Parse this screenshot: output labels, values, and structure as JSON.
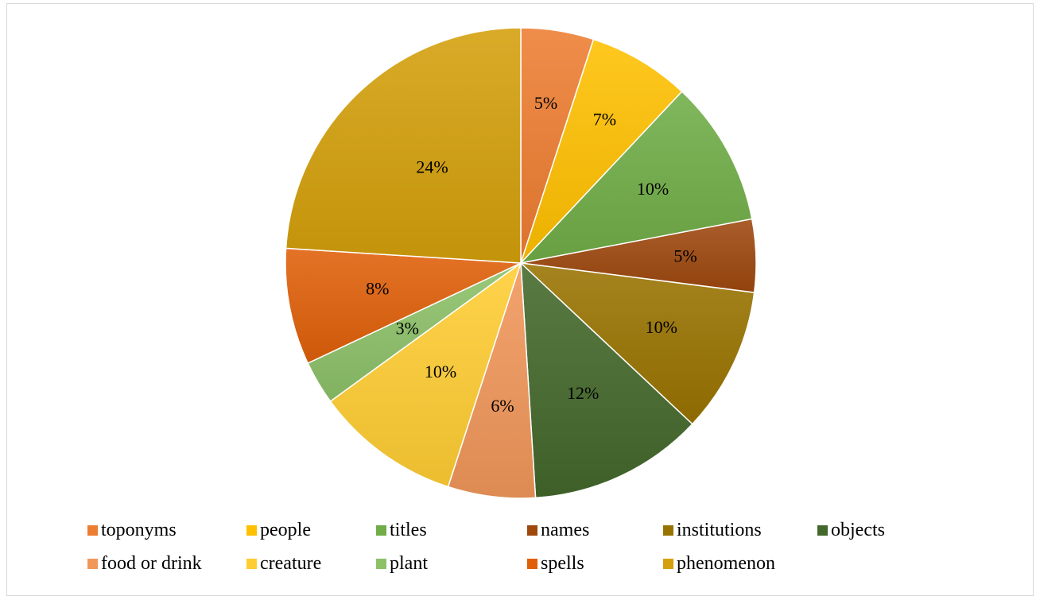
{
  "chart_data": {
    "type": "pie",
    "title": "",
    "legend_position": "bottom",
    "start_angle": "12 o'clock, clockwise",
    "slices": [
      {
        "name": "toponyms",
        "value": 5,
        "label": "5%",
        "color": "#ED7D31"
      },
      {
        "name": "people",
        "value": 7,
        "label": "7%",
        "color": "#FFC000"
      },
      {
        "name": "titles",
        "value": 10,
        "label": "10%",
        "color": "#70AD47"
      },
      {
        "name": "names",
        "value": 5,
        "label": "5%",
        "color": "#9E480E"
      },
      {
        "name": "institutions",
        "value": 10,
        "label": "10%",
        "color": "#997300"
      },
      {
        "name": "objects",
        "value": 12,
        "label": "12%",
        "color": "#43682B"
      },
      {
        "name": "food or drink",
        "value": 6,
        "label": "6%",
        "color": "#F1975A"
      },
      {
        "name": "creature",
        "value": 10,
        "label": "10%",
        "color": "#FFCD33"
      },
      {
        "name": "plant",
        "value": 3,
        "label": "3%",
        "color": "#8CC168"
      },
      {
        "name": "spells",
        "value": 8,
        "label": "8%",
        "color": "#E0600A"
      },
      {
        "name": "phenomenon",
        "value": 24,
        "label": "24%",
        "color": "#D4A00B"
      }
    ]
  }
}
